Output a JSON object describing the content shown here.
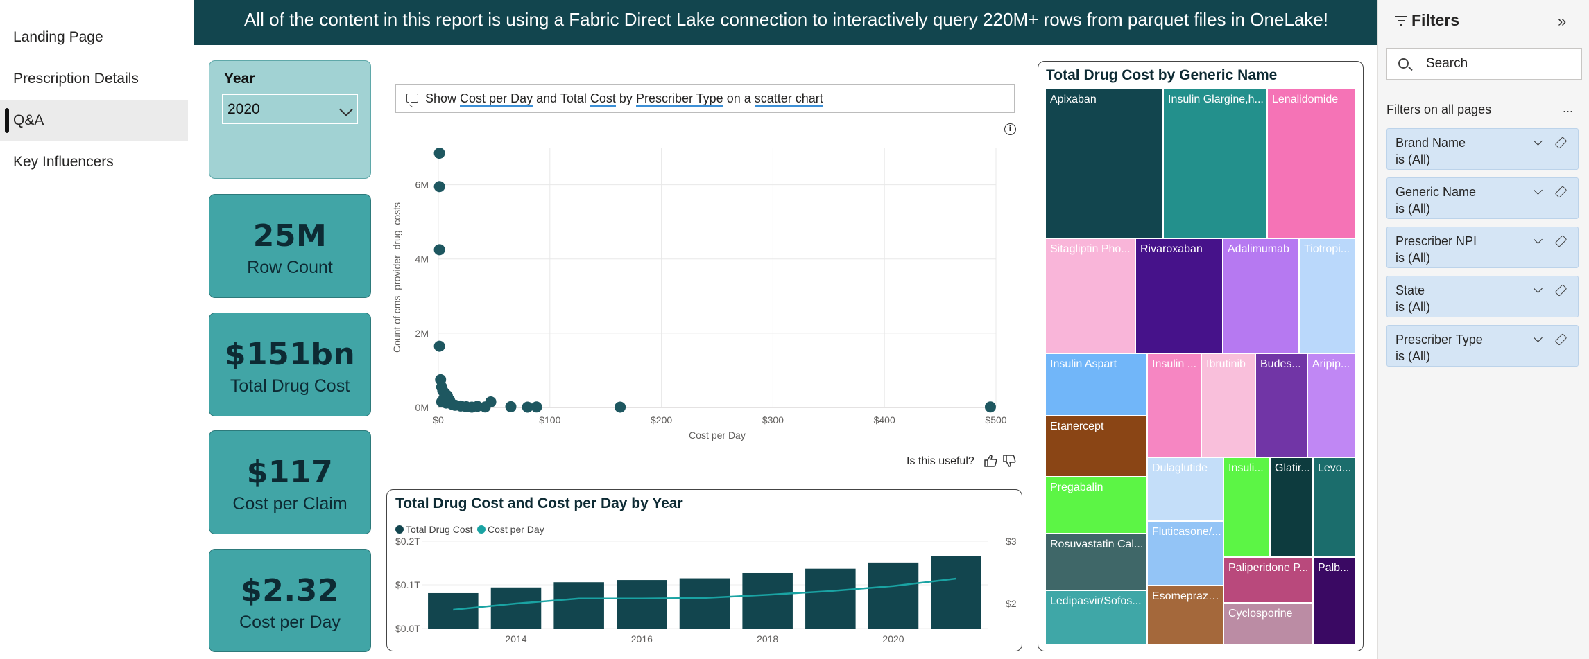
{
  "nav": {
    "items": [
      {
        "label": "Landing Page",
        "active": false
      },
      {
        "label": "Prescription Details",
        "active": false
      },
      {
        "label": "Q&A",
        "active": true
      },
      {
        "label": "Key Influencers",
        "active": false
      }
    ]
  },
  "banner": {
    "text": "All of the content in this report is using a Fabric Direct Lake connection to interactively query 220M+ rows from parquet files in OneLake!"
  },
  "year_slicer": {
    "title": "Year",
    "selected": "2020"
  },
  "kpis": [
    {
      "value": "25M",
      "label": "Row Count"
    },
    {
      "value": "$151bn",
      "label": "Total Drug Cost"
    },
    {
      "value": "$117",
      "label": "Cost per Claim"
    },
    {
      "value": "$2.32",
      "label": "Cost per Day"
    }
  ],
  "qa": {
    "show": "Show",
    "t1": "Cost per Day",
    "and": "and",
    "t2a": "Total",
    "t2b": "Cost",
    "by": "by",
    "t3": "Prescriber Type",
    "on": "on a",
    "t4": "scatter chart",
    "useful": "Is this useful?"
  },
  "colors": {
    "accent": "#41a5a6",
    "dark_teal": "#12454e",
    "point": "#1e5760",
    "line": "#1aa3a3"
  },
  "chart_data": [
    {
      "type": "scatter",
      "title": "",
      "xlabel": "Cost per Day",
      "ylabel": "Count of cms_provider_drug_costs",
      "xlim": [
        0,
        500
      ],
      "ylim": [
        0,
        7000000
      ],
      "x_ticks": [
        "$0",
        "$100",
        "$200",
        "$300",
        "$400",
        "$500"
      ],
      "x_tick_values": [
        0,
        100,
        200,
        300,
        400,
        500
      ],
      "y_ticks": [
        "0M",
        "2M",
        "4M",
        "6M"
      ],
      "y_tick_values": [
        0,
        2000000,
        4000000,
        6000000
      ],
      "points": [
        [
          1,
          6850000
        ],
        [
          1,
          5950000
        ],
        [
          1,
          4250000
        ],
        [
          1,
          1650000
        ],
        [
          2,
          750000
        ],
        [
          3,
          550000
        ],
        [
          4,
          450000
        ],
        [
          6,
          380000
        ],
        [
          8,
          320000
        ],
        [
          5,
          250000
        ],
        [
          10,
          200000
        ],
        [
          3,
          150000
        ],
        [
          7,
          120000
        ],
        [
          12,
          90000
        ],
        [
          15,
          60000
        ],
        [
          20,
          40000
        ],
        [
          25,
          20000
        ],
        [
          30,
          10000
        ],
        [
          35,
          30000
        ],
        [
          42,
          15000
        ],
        [
          47,
          150000
        ],
        [
          65,
          20000
        ],
        [
          80,
          10000
        ],
        [
          88,
          15000
        ],
        [
          163,
          10000
        ],
        [
          495,
          15000
        ]
      ]
    },
    {
      "type": "bar",
      "title": "Total Drug Cost and Cost per Day by Year",
      "categories": [
        "2013",
        "2014",
        "2015",
        "2016",
        "2017",
        "2018",
        "2019",
        "2020",
        "2021"
      ],
      "x_ticks": [
        "2014",
        "2016",
        "2018",
        "2020"
      ],
      "left_ticks": [
        "$0.0T",
        "$0.1T",
        "$0.2T"
      ],
      "right_ticks": [
        "$2",
        "$3"
      ],
      "ylim": [
        0,
        0.2
      ],
      "y2lim": [
        1.6,
        3.0
      ],
      "series": [
        {
          "name": "Total Drug Cost",
          "type": "bar",
          "values": [
            0.081,
            0.094,
            0.106,
            0.111,
            0.115,
            0.127,
            0.137,
            0.151,
            0.166
          ]
        },
        {
          "name": "Cost per Day",
          "type": "line",
          "values": [
            1.9,
            2.0,
            2.08,
            2.08,
            2.09,
            2.14,
            2.2,
            2.28,
            2.4
          ]
        }
      ],
      "legend_position": "top-left"
    },
    {
      "type": "treemap",
      "title": "Total Drug Cost by Generic Name",
      "tiles": [
        {
          "label": "Apixaban",
          "color": "#12454e"
        },
        {
          "label": "Insulin Glargine,h...",
          "color": "#23908c"
        },
        {
          "label": "Lenalidomide",
          "color": "#f573b6"
        },
        {
          "label": "Sitagliptin Pho...",
          "color": "#f9b5d9"
        },
        {
          "label": "Rivaroxaban",
          "color": "#46128a"
        },
        {
          "label": "Adalimumab",
          "color": "#b679f1"
        },
        {
          "label": "Tiotropi...",
          "color": "#bad8fb"
        },
        {
          "label": "Insulin Aspart",
          "color": "#71b6f9"
        },
        {
          "label": "Insulin ...",
          "color": "#f686c2"
        },
        {
          "label": "Ibrutinib",
          "color": "#f9bfdb"
        },
        {
          "label": "Budes...",
          "color": "#7135a6"
        },
        {
          "label": "Aripip...",
          "color": "#c087f4"
        },
        {
          "label": "Etanercept",
          "color": "#8a4515"
        },
        {
          "label": "Dulaglutide",
          "color": "#c4def9"
        },
        {
          "label": "Insuli...",
          "color": "#5cf545"
        },
        {
          "label": "Glatir...",
          "color": "#0d3b3e"
        },
        {
          "label": "Levo...",
          "color": "#1b6d6c"
        },
        {
          "label": "Pregabalin",
          "color": "#5cf545"
        },
        {
          "label": "Fluticasone/...",
          "color": "#93c4f6"
        },
        {
          "label": "Rosuvastatin Cal...",
          "color": "#3f6768"
        },
        {
          "label": "Paliperidone P...",
          "color": "#b9497c"
        },
        {
          "label": "Palb...",
          "color": "#3a0963"
        },
        {
          "label": "Esomeprazo...",
          "color": "#a4683b"
        },
        {
          "label": "Ledipasvir/Sofos...",
          "color": "#3fa7a7"
        },
        {
          "label": "Cyclosporine",
          "color": "#bb8ca4"
        }
      ]
    }
  ],
  "filters": {
    "title": "Filters",
    "search_placeholder": "Search",
    "subtitle": "Filters on all pages",
    "more": "...",
    "collapse": "»",
    "cards": [
      {
        "name": "Brand Name",
        "state": "is (All)"
      },
      {
        "name": "Generic Name",
        "state": "is (All)"
      },
      {
        "name": "Prescriber NPI",
        "state": "is (All)"
      },
      {
        "name": "State",
        "state": "is (All)"
      },
      {
        "name": "Prescriber Type",
        "state": "is (All)"
      }
    ]
  }
}
